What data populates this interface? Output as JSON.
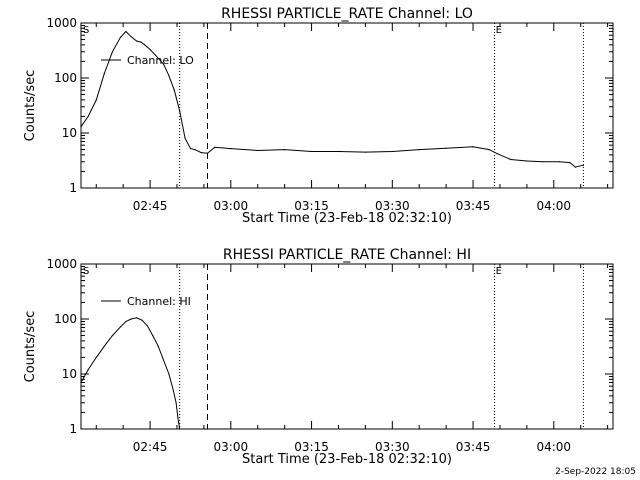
{
  "chart_data": [
    {
      "type": "line",
      "title": "RHESSI PARTICLE_RATE Channel: LO",
      "xlabel": "Start Time (23-Feb-18 02:32:10)",
      "ylabel": "Counts/sec",
      "yscale": "log",
      "ylim": [
        1,
        1000
      ],
      "xlim": [
        "02:32:10",
        "04:11:00"
      ],
      "xticks": [
        "02:45",
        "03:00",
        "03:15",
        "03:30",
        "03:45",
        "04:00"
      ],
      "yticks": [
        "1",
        "10",
        "100",
        "1000"
      ],
      "legend": "Channel: LO",
      "legend_position": "top-left",
      "markers": [
        {
          "label": "S",
          "time": "02:32:10",
          "style": "dotted"
        },
        {
          "label": "",
          "time": "02:50:30",
          "style": "dotted"
        },
        {
          "label": "",
          "time": "02:55:40",
          "style": "dashed"
        },
        {
          "label": "E",
          "time": "03:49:00",
          "style": "dotted"
        },
        {
          "label": "",
          "time": "04:05:30",
          "style": "dotted"
        }
      ],
      "series": [
        {
          "name": "Channel: LO",
          "x": [
            "02:32:10",
            "02:33:30",
            "02:35:00",
            "02:36:30",
            "02:38:00",
            "02:39:30",
            "02:40:30",
            "02:41:30",
            "02:42:30",
            "02:43:20",
            "02:44:00",
            "02:45:00",
            "02:46:00",
            "02:47:30",
            "02:48:30",
            "02:49:30",
            "02:50:30",
            "02:51:30",
            "02:52:30",
            "02:53:20",
            "02:54:30",
            "02:55:40",
            "02:57:00",
            "03:00:00",
            "03:05:00",
            "03:10:00",
            "03:15:00",
            "03:20:00",
            "03:25:00",
            "03:30:00",
            "03:35:00",
            "03:40:00",
            "03:45:00",
            "03:48:00",
            "03:49:30",
            "03:52:00",
            "03:55:00",
            "03:58:00",
            "04:01:00",
            "04:03:00",
            "04:04:00",
            "04:05:30"
          ],
          "y": [
            13,
            20,
            40,
            120,
            300,
            550,
            700,
            560,
            470,
            450,
            400,
            330,
            260,
            180,
            110,
            60,
            25,
            8,
            5.2,
            5,
            4.4,
            4.3,
            5.5,
            5.2,
            4.8,
            5.0,
            4.6,
            4.6,
            4.5,
            4.6,
            5.0,
            5.3,
            5.6,
            5.0,
            4.2,
            3.3,
            3.1,
            3.0,
            3.0,
            2.9,
            2.4,
            2.6
          ]
        }
      ]
    },
    {
      "type": "line",
      "title": "RHESSI PARTICLE_RATE Channel: HI",
      "xlabel": "Start Time (23-Feb-18 02:32:10)",
      "ylabel": "Counts/sec",
      "yscale": "log",
      "ylim": [
        1,
        1000
      ],
      "xlim": [
        "02:32:10",
        "04:11:00"
      ],
      "xticks": [
        "02:45",
        "03:00",
        "03:15",
        "03:30",
        "03:45",
        "04:00"
      ],
      "yticks": [
        "1",
        "10",
        "100",
        "1000"
      ],
      "legend": "Channel: HI",
      "legend_position": "top-left",
      "markers": [
        {
          "label": "S",
          "time": "02:32:10",
          "style": "dotted"
        },
        {
          "label": "",
          "time": "02:50:30",
          "style": "dotted"
        },
        {
          "label": "",
          "time": "02:55:40",
          "style": "dashed"
        },
        {
          "label": "E",
          "time": "03:49:00",
          "style": "dotted"
        },
        {
          "label": "",
          "time": "04:05:30",
          "style": "dotted"
        }
      ],
      "series": [
        {
          "name": "Channel: HI",
          "x": [
            "02:32:10",
            "02:33:30",
            "02:35:00",
            "02:36:30",
            "02:38:00",
            "02:39:30",
            "02:40:30",
            "02:41:30",
            "02:42:30",
            "02:43:30",
            "02:44:30",
            "02:45:30",
            "02:46:30",
            "02:47:30",
            "02:48:30",
            "02:49:20",
            "02:49:50",
            "02:50:10",
            "02:50:30"
          ],
          "y": [
            7,
            12,
            20,
            32,
            50,
            72,
            90,
            100,
            105,
            95,
            75,
            50,
            32,
            18,
            10,
            5,
            3,
            1.6,
            1
          ]
        }
      ]
    }
  ],
  "footer": {
    "timestamp": "2-Sep-2022 18:05"
  }
}
